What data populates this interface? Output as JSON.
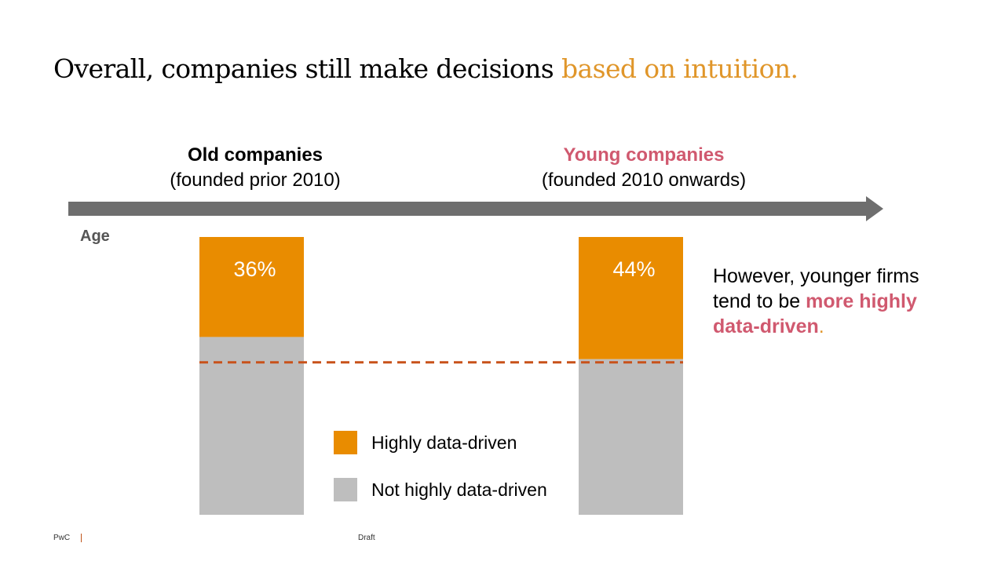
{
  "slide": {
    "title_main": "Overall, companies still make decisions ",
    "title_accent": "based on intuition.",
    "groups": [
      {
        "heading": "Old companies",
        "sub": "(founded prior 2010)"
      },
      {
        "heading": "Young companies",
        "sub": "(founded 2010 onwards)"
      }
    ],
    "axis_label": "Age",
    "side_note": {
      "part1": "However, younger firms tend to be ",
      "highlight": "more highly data-driven",
      "end": "."
    },
    "footer": {
      "brand": "PwC",
      "status": "Draft"
    }
  },
  "colors": {
    "highly": "#e98c00",
    "not_highly": "#bebebe",
    "young_accent": "#d0596f",
    "title_accent": "#e0962a",
    "reference_line": "#c8521a",
    "arrow": "#6e6e6e"
  },
  "chart_data": {
    "type": "bar",
    "stacked": true,
    "categories": [
      "Old companies",
      "Young companies"
    ],
    "series": [
      {
        "name": "Highly data-driven",
        "values": [
          36,
          44
        ]
      },
      {
        "name": "Not highly data-driven",
        "values": [
          64,
          56
        ]
      }
    ],
    "data_labels": [
      "36%",
      "44%"
    ],
    "reference_line": {
      "value": 44,
      "style": "dashed"
    },
    "ylim": [
      0,
      100
    ],
    "xlabel": "Age",
    "legend": [
      "Highly data-driven",
      "Not highly data-driven"
    ],
    "legend_position": "center-bottom",
    "grid": false
  }
}
